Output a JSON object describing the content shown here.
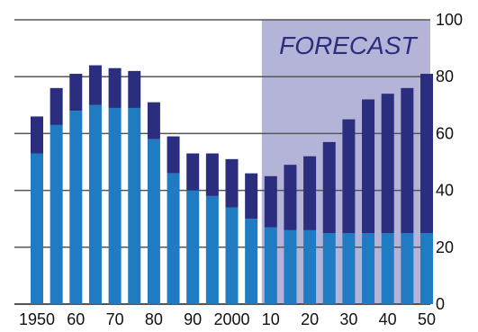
{
  "chart_data": {
    "type": "bar",
    "stacked": true,
    "categories": [
      "1950",
      "55",
      "60",
      "65",
      "70",
      "75",
      "80",
      "85",
      "90",
      "95",
      "2000",
      "05",
      "10",
      "15",
      "20",
      "25",
      "30",
      "35",
      "40",
      "45",
      "50"
    ],
    "x_tick_labels": [
      "1950",
      "60",
      "70",
      "80",
      "90",
      "2000",
      "10",
      "20",
      "30",
      "40",
      "50"
    ],
    "x_tick_indices": [
      0,
      2,
      4,
      6,
      8,
      10,
      12,
      14,
      16,
      18,
      20
    ],
    "series": [
      {
        "values": [
          53,
          63,
          68,
          70,
          69,
          69,
          58,
          46,
          40,
          38,
          34,
          30,
          27,
          26,
          26,
          25,
          25,
          25,
          25,
          25,
          25
        ],
        "color": "#1f7cc3"
      },
      {
        "values": [
          13,
          13,
          13,
          14,
          14,
          13,
          13,
          13,
          13,
          15,
          17,
          16,
          18,
          23,
          26,
          32,
          40,
          47,
          49,
          51,
          56
        ],
        "color": "#2b2e7e"
      }
    ],
    "ylim": [
      0,
      100
    ],
    "y_ticks": [
      0,
      20,
      40,
      60,
      80,
      100
    ],
    "y_axis_position": "right",
    "grid": true,
    "forecast_region": {
      "label": "FORECAST",
      "start_index": 12,
      "end_index": 20,
      "color": "#b4b4d8"
    }
  }
}
